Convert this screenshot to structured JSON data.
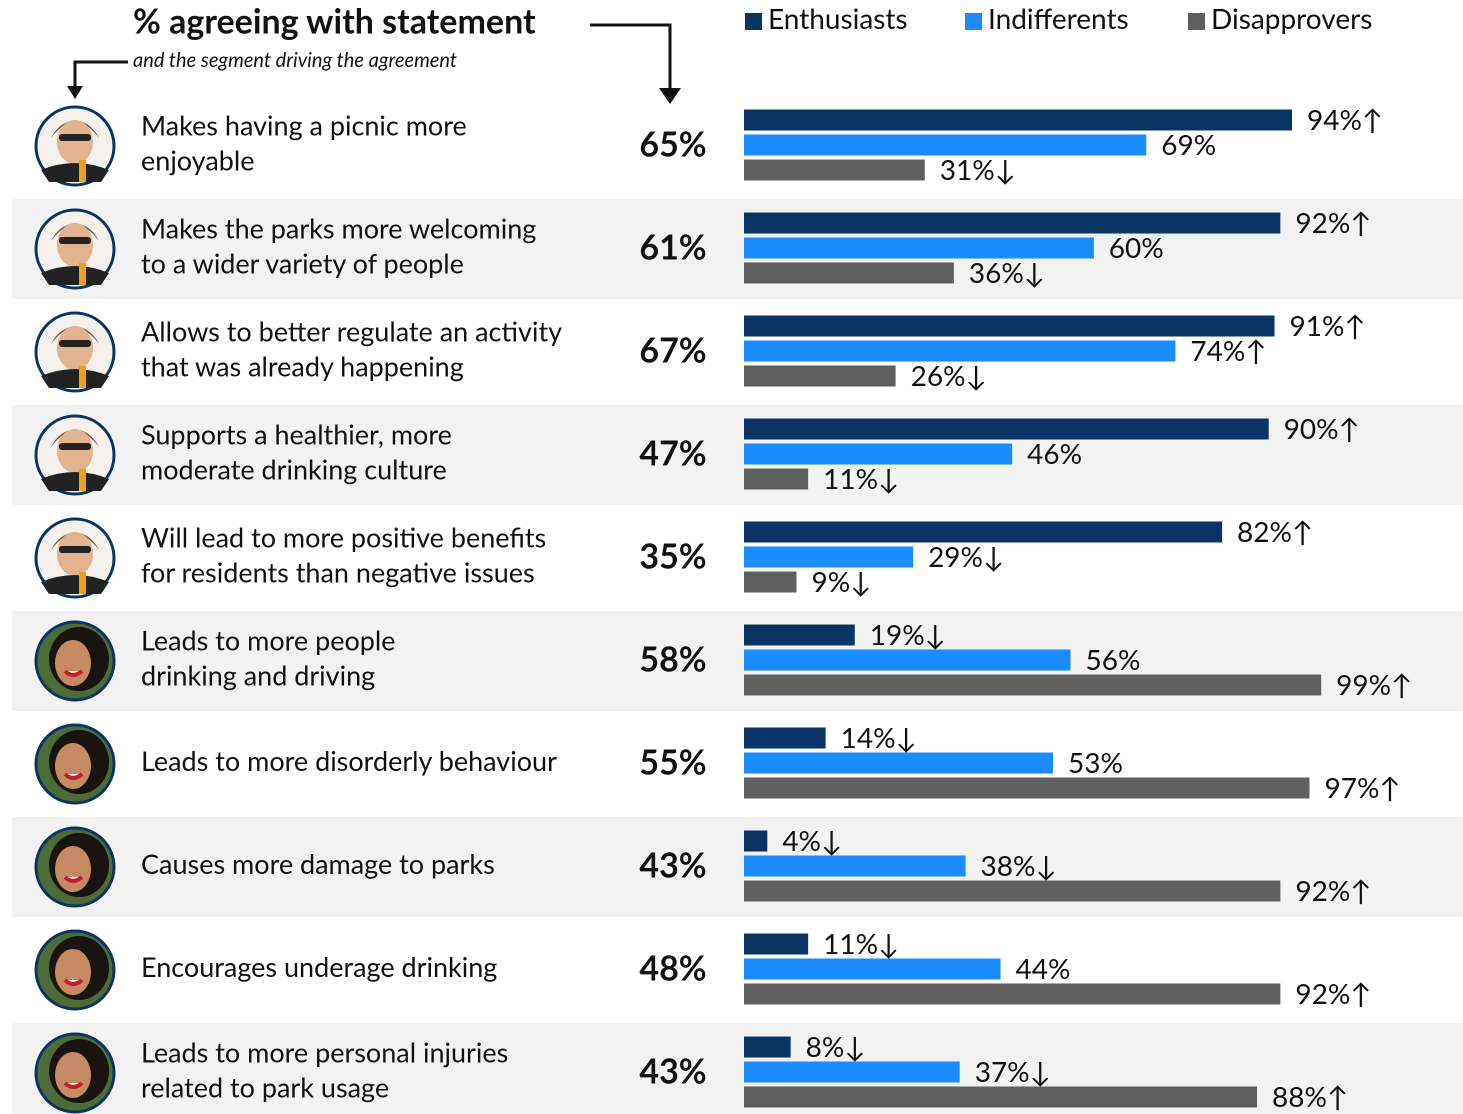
{
  "chart_data": {
    "type": "bar",
    "title": "% agreeing with statement",
    "subtitle": "and the segment driving the agreement",
    "categories": [
      [
        "Makes having a picnic more",
        "enjoyable"
      ],
      [
        "Makes the parks more welcoming",
        "to a wider variety of people"
      ],
      [
        "Allows to better regulate an activity",
        "that was already happening"
      ],
      [
        "Supports a healthier, more",
        "moderate drinking culture"
      ],
      [
        "Will lead to more positive benefits",
        "for residents than negative issues"
      ],
      [
        "Leads to more people",
        "drinking and driving"
      ],
      [
        "Leads to more disorderly behaviour"
      ],
      [
        "Causes more damage to parks"
      ],
      [
        "Encourages underage drinking"
      ],
      [
        "Leads to more personal injuries",
        "related to park usage"
      ]
    ],
    "totals": {
      "values": [
        65,
        61,
        67,
        47,
        35,
        58,
        55,
        43,
        48,
        43
      ],
      "value_labels": [
        "65%",
        "61%",
        "67%",
        "47%",
        "35%",
        "58%",
        "55%",
        "43%",
        "48%",
        "43%"
      ]
    },
    "series": [
      {
        "name": "Enthusiasts",
        "color": "#0a3464",
        "values": [
          94,
          92,
          91,
          90,
          82,
          19,
          14,
          4,
          11,
          8
        ],
        "value_labels": [
          "94%↑",
          "92%↑",
          "91%↑",
          "90%↑",
          "82%↑",
          "19%↓",
          "14%↓",
          "4%↓",
          "11%↓",
          "8%↓"
        ]
      },
      {
        "name": "Indifferents",
        "color": "#1a8cff",
        "values": [
          69,
          60,
          74,
          46,
          29,
          56,
          53,
          38,
          44,
          37
        ],
        "value_labels": [
          "69%",
          "60%",
          "74%↑",
          "46%",
          "29%↓",
          "56%",
          "53%",
          "38%↓",
          "44%",
          "37%↓"
        ]
      },
      {
        "name": "Disapprovers",
        "color": "#5f5f5f",
        "values": [
          31,
          36,
          26,
          11,
          9,
          99,
          97,
          92,
          92,
          88
        ],
        "value_labels": [
          "31%↓",
          "36%↓",
          "26%↓",
          "11%↓",
          "9%↓",
          "99%↑",
          "97%↑",
          "92%↑",
          "92%↑",
          "88%↑"
        ]
      }
    ]
  }
}
